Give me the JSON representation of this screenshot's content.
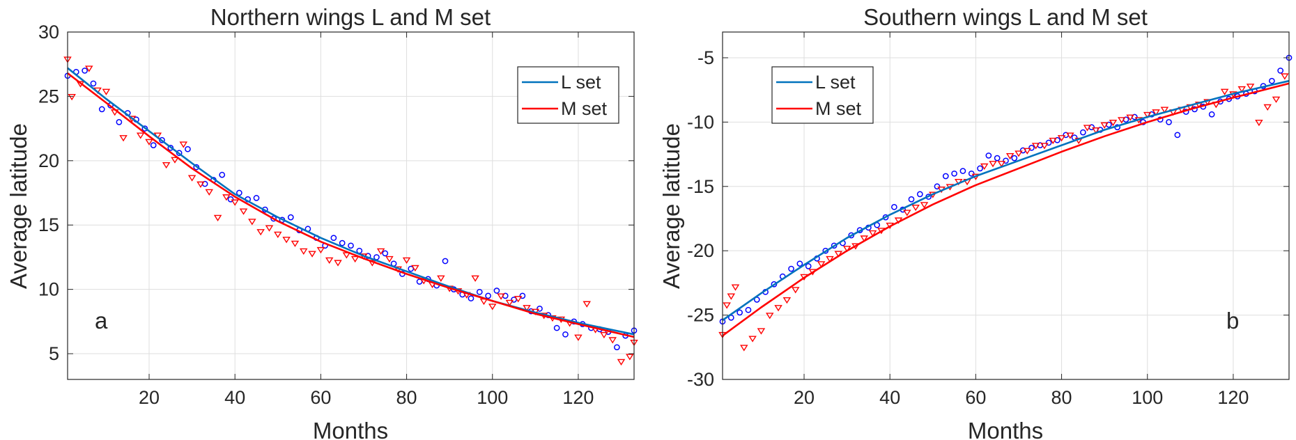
{
  "chart_data": [
    {
      "id": "north",
      "type": "scatter",
      "title": "Northern wings L and M set",
      "xlabel": "Months",
      "ylabel": "Average latitude",
      "xlim": [
        1,
        133
      ],
      "ylim": [
        3,
        30
      ],
      "xticks": [
        20,
        40,
        60,
        80,
        100,
        120
      ],
      "yticks": [
        5,
        10,
        15,
        20,
        25,
        30
      ],
      "grid": true,
      "legend_position": "top-right",
      "panel_label": "a",
      "series": [
        {
          "name": "L set",
          "kind": "markers",
          "marker": "circle",
          "color": "#0000ff",
          "x": [
            1,
            3,
            5,
            7,
            9,
            11,
            13,
            15,
            17,
            19,
            21,
            23,
            25,
            27,
            29,
            31,
            33,
            35,
            37,
            39,
            41,
            43,
            45,
            47,
            49,
            51,
            53,
            55,
            57,
            59,
            61,
            63,
            65,
            67,
            69,
            71,
            73,
            75,
            77,
            79,
            81,
            83,
            85,
            87,
            89,
            91,
            93,
            95,
            97,
            99,
            101,
            103,
            105,
            107,
            109,
            111,
            113,
            115,
            117,
            119,
            121,
            123,
            125,
            127,
            129,
            131,
            133
          ],
          "y": [
            26.6,
            26.9,
            27.0,
            26.0,
            24.0,
            24.3,
            23.0,
            23.7,
            23.2,
            22.5,
            21.2,
            21.6,
            21.0,
            20.6,
            20.9,
            19.5,
            18.2,
            18.5,
            18.9,
            17.0,
            17.5,
            17.0,
            17.1,
            16.2,
            15.5,
            15.4,
            15.6,
            14.6,
            14.7,
            14.0,
            13.4,
            14.0,
            13.6,
            13.4,
            13.0,
            12.6,
            12.5,
            12.8,
            12.0,
            11.2,
            11.6,
            10.6,
            10.8,
            10.3,
            12.2,
            10.0,
            9.6,
            9.3,
            9.8,
            9.5,
            9.9,
            9.5,
            9.2,
            9.5,
            8.3,
            8.5,
            8.0,
            7.0,
            6.5,
            7.5,
            7.3,
            7.0,
            6.9,
            6.7,
            5.5,
            6.4,
            6.8
          ]
        },
        {
          "name": "M set",
          "kind": "markers",
          "marker": "triangle-down",
          "color": "#ff0000",
          "x": [
            1,
            2,
            4,
            6,
            8,
            10,
            12,
            14,
            16,
            18,
            20,
            22,
            24,
            26,
            28,
            30,
            32,
            34,
            36,
            38,
            40,
            42,
            44,
            46,
            48,
            50,
            52,
            54,
            56,
            58,
            60,
            62,
            64,
            66,
            68,
            70,
            72,
            74,
            76,
            78,
            80,
            82,
            84,
            86,
            88,
            90,
            92,
            94,
            96,
            98,
            100,
            102,
            104,
            106,
            108,
            110,
            112,
            114,
            116,
            118,
            120,
            122,
            124,
            126,
            128,
            130,
            132,
            133
          ],
          "y": [
            27.9,
            25.0,
            26.0,
            27.2,
            25.5,
            25.4,
            23.8,
            21.8,
            23.3,
            22.0,
            21.5,
            22.0,
            19.7,
            20.1,
            21.3,
            18.7,
            18.2,
            17.6,
            15.6,
            17.2,
            16.8,
            16.1,
            15.3,
            14.5,
            14.8,
            14.3,
            13.9,
            13.6,
            13.0,
            12.8,
            13.1,
            12.3,
            12.1,
            12.7,
            12.4,
            12.6,
            12.1,
            13.0,
            12.4,
            11.6,
            12.3,
            11.7,
            10.7,
            10.4,
            10.9,
            10.1,
            9.9,
            9.6,
            10.9,
            9.1,
            8.7,
            9.5,
            9.0,
            9.3,
            8.6,
            8.3,
            8.0,
            7.8,
            7.7,
            7.4,
            6.3,
            8.9,
            6.9,
            6.5,
            6.1,
            4.4,
            4.8,
            5.9
          ]
        },
        {
          "name": "L set",
          "kind": "fit",
          "color": "#0072bd",
          "x": [
            1,
            10,
            20,
            30,
            40,
            50,
            60,
            70,
            80,
            90,
            100,
            110,
            120,
            133
          ],
          "y": [
            27.2,
            24.8,
            22.3,
            19.8,
            17.4,
            15.6,
            14.0,
            12.6,
            11.4,
            10.2,
            9.1,
            8.2,
            7.4,
            6.5
          ]
        },
        {
          "name": "M set",
          "kind": "fit",
          "color": "#ff0000",
          "x": [
            1,
            10,
            20,
            30,
            40,
            50,
            60,
            70,
            80,
            90,
            100,
            110,
            120,
            133
          ],
          "y": [
            26.8,
            24.5,
            21.9,
            19.4,
            17.2,
            15.3,
            13.7,
            12.4,
            11.2,
            10.1,
            9.1,
            8.1,
            7.3,
            6.3
          ]
        }
      ]
    },
    {
      "id": "south",
      "type": "scatter",
      "title": "Southern wings L and M set",
      "xlabel": "Months",
      "ylabel": "Average latitude",
      "xlim": [
        1,
        133
      ],
      "ylim": [
        -30,
        -3
      ],
      "xticks": [
        20,
        40,
        60,
        80,
        100,
        120
      ],
      "yticks": [
        -30,
        -25,
        -20,
        -15,
        -10,
        -5
      ],
      "grid": true,
      "legend_position": "top-left",
      "panel_label": "b",
      "series": [
        {
          "name": "L set",
          "kind": "markers",
          "marker": "circle",
          "color": "#0000ff",
          "x": [
            1,
            3,
            5,
            7,
            9,
            11,
            13,
            15,
            17,
            19,
            21,
            23,
            25,
            27,
            29,
            31,
            33,
            35,
            37,
            39,
            41,
            43,
            45,
            47,
            49,
            51,
            53,
            55,
            57,
            59,
            61,
            63,
            65,
            67,
            69,
            71,
            73,
            75,
            77,
            79,
            81,
            83,
            85,
            87,
            89,
            91,
            93,
            95,
            97,
            99,
            101,
            103,
            105,
            107,
            109,
            111,
            113,
            115,
            117,
            119,
            121,
            123,
            125,
            127,
            129,
            131,
            133
          ],
          "y": [
            -25.5,
            -25.2,
            -24.8,
            -24.6,
            -23.8,
            -23.2,
            -22.6,
            -22.0,
            -21.4,
            -21.0,
            -21.2,
            -20.6,
            -20.0,
            -19.6,
            -19.4,
            -18.8,
            -18.4,
            -18.2,
            -18.0,
            -17.4,
            -16.6,
            -16.8,
            -16.0,
            -15.6,
            -15.8,
            -15.0,
            -14.2,
            -14.0,
            -13.8,
            -14.0,
            -13.6,
            -12.6,
            -12.8,
            -13.0,
            -12.8,
            -12.2,
            -12.0,
            -11.8,
            -11.6,
            -11.4,
            -11.0,
            -11.2,
            -10.8,
            -10.4,
            -10.6,
            -10.2,
            -10.4,
            -9.8,
            -9.6,
            -10.0,
            -9.4,
            -9.8,
            -10.0,
            -11.0,
            -9.2,
            -9.0,
            -8.8,
            -9.4,
            -8.4,
            -8.2,
            -8.0,
            -7.8,
            -7.6,
            -7.2,
            -6.8,
            -6.0,
            -5.0
          ]
        },
        {
          "name": "M set",
          "kind": "markers",
          "marker": "triangle-down",
          "color": "#ff0000",
          "x": [
            1,
            2,
            3,
            4,
            6,
            8,
            10,
            12,
            14,
            16,
            18,
            20,
            22,
            24,
            26,
            28,
            30,
            32,
            34,
            36,
            38,
            40,
            42,
            44,
            46,
            48,
            50,
            52,
            54,
            56,
            58,
            60,
            62,
            64,
            66,
            68,
            70,
            72,
            74,
            76,
            78,
            80,
            82,
            84,
            86,
            88,
            90,
            92,
            94,
            96,
            98,
            100,
            102,
            104,
            106,
            108,
            110,
            112,
            114,
            116,
            118,
            120,
            122,
            124,
            126,
            128,
            130,
            132
          ],
          "y": [
            -26.5,
            -24.2,
            -23.5,
            -22.8,
            -27.5,
            -26.8,
            -26.2,
            -25.0,
            -24.4,
            -23.8,
            -23.0,
            -22.0,
            -21.6,
            -21.0,
            -20.6,
            -20.2,
            -19.8,
            -19.6,
            -19.0,
            -18.6,
            -18.4,
            -18.0,
            -17.6,
            -17.0,
            -16.6,
            -16.4,
            -15.6,
            -15.2,
            -15.0,
            -14.6,
            -14.6,
            -14.2,
            -13.4,
            -13.2,
            -13.2,
            -12.6,
            -12.4,
            -12.2,
            -11.8,
            -11.8,
            -11.4,
            -11.2,
            -11.0,
            -11.4,
            -10.4,
            -10.6,
            -10.2,
            -10.0,
            -9.8,
            -9.6,
            -9.8,
            -9.4,
            -9.2,
            -9.0,
            -9.2,
            -9.0,
            -8.8,
            -8.6,
            -8.4,
            -8.6,
            -7.6,
            -7.8,
            -7.4,
            -7.2,
            -10.0,
            -8.8,
            -8.2,
            -6.4
          ]
        },
        {
          "name": "L set",
          "kind": "fit",
          "color": "#0072bd",
          "x": [
            1,
            10,
            20,
            30,
            40,
            50,
            60,
            70,
            80,
            90,
            100,
            110,
            120,
            133
          ],
          "y": [
            -25.4,
            -23.3,
            -21.1,
            -19.0,
            -17.2,
            -15.6,
            -14.2,
            -13.0,
            -11.8,
            -10.6,
            -9.6,
            -8.7,
            -7.8,
            -6.8
          ]
        },
        {
          "name": "M set",
          "kind": "fit",
          "color": "#ff0000",
          "x": [
            1,
            10,
            20,
            30,
            40,
            50,
            60,
            70,
            80,
            90,
            100,
            110,
            120,
            133
          ],
          "y": [
            -26.6,
            -24.4,
            -22.1,
            -20.0,
            -18.1,
            -16.4,
            -14.9,
            -13.6,
            -12.3,
            -11.1,
            -10.0,
            -9.0,
            -8.1,
            -7.0
          ]
        }
      ]
    }
  ]
}
